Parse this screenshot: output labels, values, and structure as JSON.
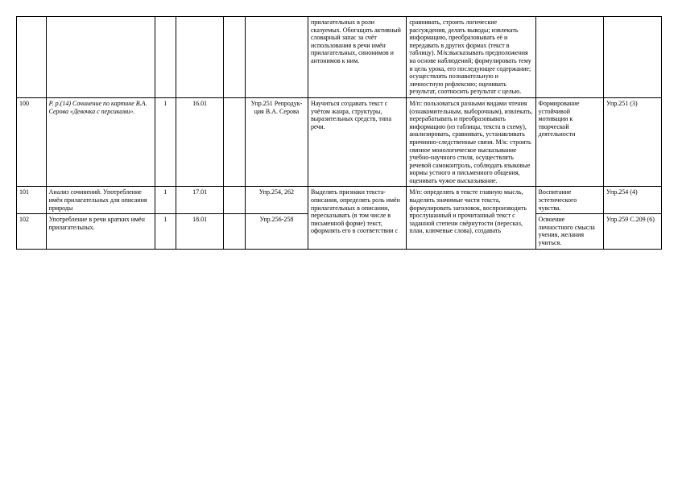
{
  "rows": [
    {
      "c0": "",
      "c1": "",
      "c2": "",
      "c3": "",
      "c4": "",
      "c5": "",
      "c6": "прилагательных в роли сказуемых. Обогащать активный словарный запас за счёт использования в речи имён прилагательных, синонимов и антонимов к ним.",
      "c7": "сравнивать, строить логические рассуждения, делать выводы; извлекать информацию, преобразовывать её и передавать в других формах (текст в таблицу). М/к:высказывать предположения на основе наблюдений; формулировать тему и цель урока, его последующее содержание; осуществлять познавательную и личностную рефлексию; оценивать результат, соотносить результат с целью.",
      "c8": "",
      "c9": ""
    },
    {
      "c0": "100",
      "c1_italic": "Р. р.(14) Сочинение по картине В.А. Серова «Девочка с персиками».",
      "c2": "1",
      "c3": "16.01",
      "c4": "",
      "c5": "Упр.251 Репродук-ция В.А. Серова",
      "c6": "Научиться создавать текст с учётом жанра, структуры, выразительных средств, типа речи.",
      "c7": "М/п: пользоваться разными видами чтения (ознакомительным, выборочным), извлекать, перерабатывать и преобразовывать информацию (из таблицы, текста в схему), анализировать, сравнивать, устанавливать причинно-следственные связи. М/к: строить связное монологическое высказывание учебно-научного стиля, осуществлять речевой самоконтроль, соблюдать языковые нормы устного и письменного общения, оценивать чужое высказывание.",
      "c8": "Формирование устойчивой мотивации к творческой деятельности",
      "c9": "Упр.251 (3)"
    },
    {
      "c0": "101",
      "c1": "Анализ сочинений. Употребление имён прилагательных для описания природы",
      "c2": "1",
      "c3": "17.01",
      "c4": "",
      "c5": "Упр.254, 262",
      "c6_rowspan": "Выделять признаки текста-описания, определять роль имён прилагательных в описании, пересказывать (в том числе в письменной форме) текст, оформлять его в соответствии с",
      "c7_rowspan": "М/п: определять в тексте главную мысль, выделять значимые части текста, формулировать заголовок, воспроизводить прослушанный и прочитанный текст с заданной степени свёрнутости (пересказ, план, ключевые слова), создавать",
      "c8": "Воспитание эстетического чувства.",
      "c9": "Упр.254 (4)"
    },
    {
      "c0": "102",
      "c1": "Употребление в речи кратких имён прилагательных.",
      "c2": "1",
      "c3": "18.01",
      "c4": "",
      "c5": "Упр.256-258",
      "c8": "Освоение личностного смысла учения, желания учиться.",
      "c9": "Упр.259 С.209 (6)"
    }
  ]
}
